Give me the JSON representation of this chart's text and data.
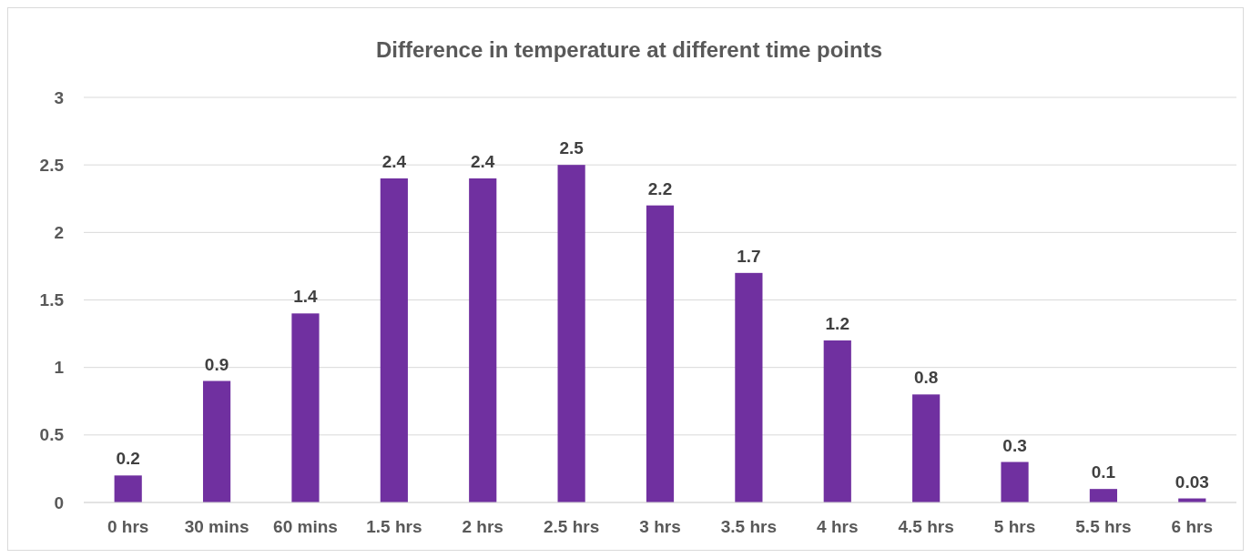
{
  "chart_data": {
    "type": "bar",
    "title": "Difference in temperature at different time points",
    "categories": [
      "0 hrs",
      "30 mins",
      "60 mins",
      "1.5 hrs",
      "2 hrs",
      "2.5 hrs",
      "3 hrs",
      "3.5 hrs",
      "4 hrs",
      "4.5 hrs",
      "5 hrs",
      "5.5 hrs",
      "6 hrs"
    ],
    "values": [
      0.2,
      0.9,
      1.4,
      2.4,
      2.4,
      2.5,
      2.2,
      1.7,
      1.2,
      0.8,
      0.3,
      0.1,
      0.03
    ],
    "color": "#7030a0",
    "ylim": [
      0,
      3
    ],
    "yticks": [
      0,
      0.5,
      1,
      1.5,
      2,
      2.5,
      3
    ],
    "grid": "y",
    "data_labels": true
  }
}
